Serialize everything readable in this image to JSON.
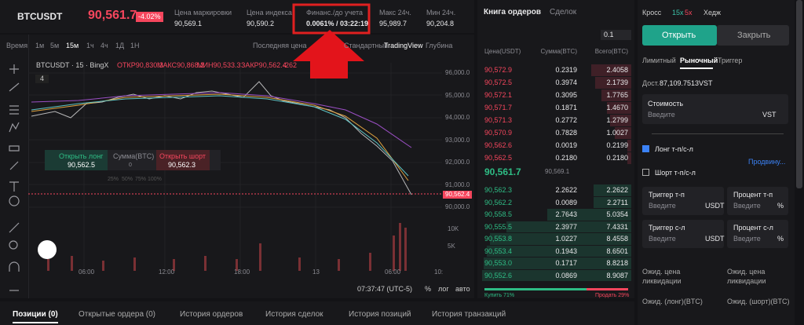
{
  "header": {
    "symbol": "BTCUSDT",
    "price": "90,561.7",
    "change": "-4.02%",
    "stats": [
      {
        "label": "Цена маркировки",
        "value": "90,569.1"
      },
      {
        "label": "Цена индекса",
        "value": "90,590.2"
      },
      {
        "label": "Финанс./до учета",
        "value": "0.0061% / 03:22:19"
      },
      {
        "label": "Макс 24ч.",
        "value": "95,989.7"
      },
      {
        "label": "Мин 24ч.",
        "value": "90,204.8"
      }
    ]
  },
  "toolbar": {
    "intervals": [
      "Время",
      "1м",
      "5м",
      "15м",
      "1ч",
      "4ч",
      "1Д",
      "1Н"
    ],
    "price_type": "Последняя цена",
    "views": [
      "Стандартный",
      "TradingView",
      "Глубина"
    ]
  },
  "chart": {
    "legend": "BTCUSDT · 15 · BingX",
    "ohlc": [
      "ОТКР90,830.3",
      "МАКС90,868.2",
      "МИН90,533.3",
      "ЗАКР90,562.4",
      "-262"
    ],
    "indicator": "4",
    "price_axis": [
      "96,000.0",
      "95,000.0",
      "94,000.0",
      "93,000.0",
      "92,000.0",
      "91,000.0",
      "90,000.0"
    ],
    "current_price": "90,562.4",
    "volume_axis": [
      "10K",
      "5K"
    ],
    "time_axis": [
      "06:00",
      "12:00",
      "18:00",
      "13",
      "06:00"
    ],
    "time_cut": "10:",
    "trade_box": {
      "long_label": "Открыть лонг",
      "long_price": "90,562.5",
      "amount_label": "Сумма(BTC)",
      "amount": "0",
      "short_label": "Открыть шорт",
      "short_price": "90,562.3",
      "percents": [
        "25%",
        "50%",
        "75%",
        "100%"
      ]
    },
    "footer": {
      "clock": "07:37:47 (UTC-5)",
      "options": [
        "%",
        "лог",
        "авто"
      ]
    }
  },
  "tabs": [
    "Позиции (0)",
    "Открытые ордера (0)",
    "История ордеров",
    "История сделок",
    "История позиций",
    "История транзакций"
  ],
  "orderbook": {
    "tabs": [
      "Книга ордеров",
      "Сделок"
    ],
    "step": "0.1",
    "columns": [
      "Цена(USDT)",
      "Сумма(BTC)",
      "Всего(BTC)"
    ],
    "asks": [
      {
        "price": "90,572.9",
        "amount": "0.2319",
        "total": "2.4058"
      },
      {
        "price": "90,572.5",
        "amount": "0.3974",
        "total": "2.1739"
      },
      {
        "price": "90,572.1",
        "amount": "0.3095",
        "total": "1.7765"
      },
      {
        "price": "90,571.7",
        "amount": "0.1871",
        "total": "1.4670"
      },
      {
        "price": "90,571.3",
        "amount": "0.2772",
        "total": "1.2799"
      },
      {
        "price": "90,570.9",
        "amount": "0.7828",
        "total": "1.0027"
      },
      {
        "price": "90,562.6",
        "amount": "0.0019",
        "total": "0.2199"
      },
      {
        "price": "90,562.5",
        "amount": "0.2180",
        "total": "0.2180"
      }
    ],
    "mid_price": "90,561.7",
    "mid_mark": "90,569.1",
    "bids": [
      {
        "price": "90,562.3",
        "amount": "2.2622",
        "total": "2.2622"
      },
      {
        "price": "90,562.2",
        "amount": "0.0089",
        "total": "2.2711"
      },
      {
        "price": "90,558.5",
        "amount": "2.7643",
        "total": "5.0354"
      },
      {
        "price": "90,555.5",
        "amount": "2.3977",
        "total": "7.4331"
      },
      {
        "price": "90,553.8",
        "amount": "1.0227",
        "total": "8.4558"
      },
      {
        "price": "90,553.4",
        "amount": "0.1943",
        "total": "8.6501"
      },
      {
        "price": "90,553.0",
        "amount": "0.1717",
        "total": "8.8218"
      },
      {
        "price": "90,552.6",
        "amount": "0.0869",
        "total": "8.9087"
      }
    ],
    "buy_ratio": "Купить 71%",
    "sell_ratio": "Продать 29%"
  },
  "order_panel": {
    "margin": "Кросс",
    "leverage": [
      "15x",
      "5x"
    ],
    "mode": "Хедж",
    "open": "Открыть",
    "close": "Закрыть",
    "order_types": [
      "Лимитный",
      "Рыночный",
      "Триггер"
    ],
    "available_label": "Дост.",
    "available": "87,109.7513",
    "available_unit": "VST",
    "cost_label": "Стоимость",
    "placeholder": "Введите",
    "cost_unit": "VST",
    "long_tpsl": "Лонг т-п/с-л",
    "advanced": "Продвину...",
    "short_tpsl": "Шорт т-п/с-л",
    "fields": [
      {
        "label": "Триггер т-п",
        "unit": "USDT"
      },
      {
        "label": "Процент т-п",
        "unit": "%"
      },
      {
        "label": "Триггер с-л",
        "unit": "USDT"
      },
      {
        "label": "Процент с-л",
        "unit": "%"
      }
    ],
    "liq_label": "Ожид. цена ликвидации",
    "long_qty": "Ожид. (лонг)(BTC)",
    "short_qty": "Ожид. (шорт)(BTC)"
  }
}
